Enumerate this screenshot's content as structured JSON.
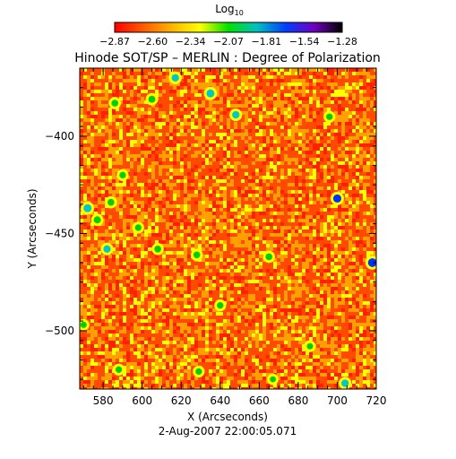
{
  "chart_data": {
    "type": "heatmap",
    "title": "Hinode SOT/SP – MERLIN : Degree of Polarization",
    "xlabel": "X (Arcseconds)",
    "ylabel": "Y (Arcseconds)",
    "timestamp": "2-Aug-2007 22:00:05.071",
    "xlim": [
      568,
      720
    ],
    "ylim": [
      -530,
      -365
    ],
    "x_ticks": [
      {
        "value": 580,
        "label": "580"
      },
      {
        "value": 600,
        "label": "600"
      },
      {
        "value": 620,
        "label": "620"
      },
      {
        "value": 640,
        "label": "640"
      },
      {
        "value": 660,
        "label": "660"
      },
      {
        "value": 680,
        "label": "680"
      },
      {
        "value": 700,
        "label": "700"
      },
      {
        "value": 720,
        "label": "720"
      }
    ],
    "y_ticks": [
      {
        "value": -400,
        "label": "−400"
      },
      {
        "value": -450,
        "label": "−450"
      },
      {
        "value": -500,
        "label": "−500"
      }
    ],
    "colorbar": {
      "title_base": "Log",
      "title_sub": "10",
      "min": -2.87,
      "max": -1.28,
      "tick_labels": [
        "−2.87",
        "−2.60",
        "−2.34",
        "−2.07",
        "−1.81",
        "−1.54",
        "−1.28"
      ],
      "colors": [
        "#ff0000",
        "#ff5a00",
        "#ffb400",
        "#ffff00",
        "#00e000",
        "#00c0c0",
        "#0040ff",
        "#7000c0",
        "#000000"
      ]
    },
    "field_colors": {
      "dominant": "#ff4a00",
      "secondary": "#ffa000",
      "highlight": "#ffff00",
      "rare": [
        "#00d000",
        "#00c8c8",
        "#0030ff"
      ]
    },
    "strong_patches": [
      {
        "x": 617,
        "y": -370,
        "level": 0.72
      },
      {
        "x": 635,
        "y": -378,
        "level": 0.8
      },
      {
        "x": 605,
        "y": -381,
        "level": 0.65
      },
      {
        "x": 586,
        "y": -383,
        "level": 0.62
      },
      {
        "x": 648,
        "y": -389,
        "level": 0.7
      },
      {
        "x": 696,
        "y": -390,
        "level": 0.55
      },
      {
        "x": 590,
        "y": -420,
        "level": 0.55
      },
      {
        "x": 700,
        "y": -432,
        "level": 0.85
      },
      {
        "x": 572,
        "y": -437,
        "level": 0.82
      },
      {
        "x": 584,
        "y": -434,
        "level": 0.6
      },
      {
        "x": 577,
        "y": -443,
        "level": 0.65
      },
      {
        "x": 582,
        "y": -458,
        "level": 0.7
      },
      {
        "x": 598,
        "y": -447,
        "level": 0.55
      },
      {
        "x": 608,
        "y": -458,
        "level": 0.6
      },
      {
        "x": 628,
        "y": -461,
        "level": 0.6
      },
      {
        "x": 665,
        "y": -462,
        "level": 0.6
      },
      {
        "x": 718,
        "y": -465,
        "level": 0.95
      },
      {
        "x": 570,
        "y": -497,
        "level": 0.5
      },
      {
        "x": 640,
        "y": -487,
        "level": 0.55
      },
      {
        "x": 686,
        "y": -508,
        "level": 0.5
      },
      {
        "x": 588,
        "y": -520,
        "level": 0.55
      },
      {
        "x": 629,
        "y": -521,
        "level": 0.55
      },
      {
        "x": 667,
        "y": -525,
        "level": 0.45
      },
      {
        "x": 704,
        "y": -527,
        "level": 0.7
      }
    ]
  }
}
